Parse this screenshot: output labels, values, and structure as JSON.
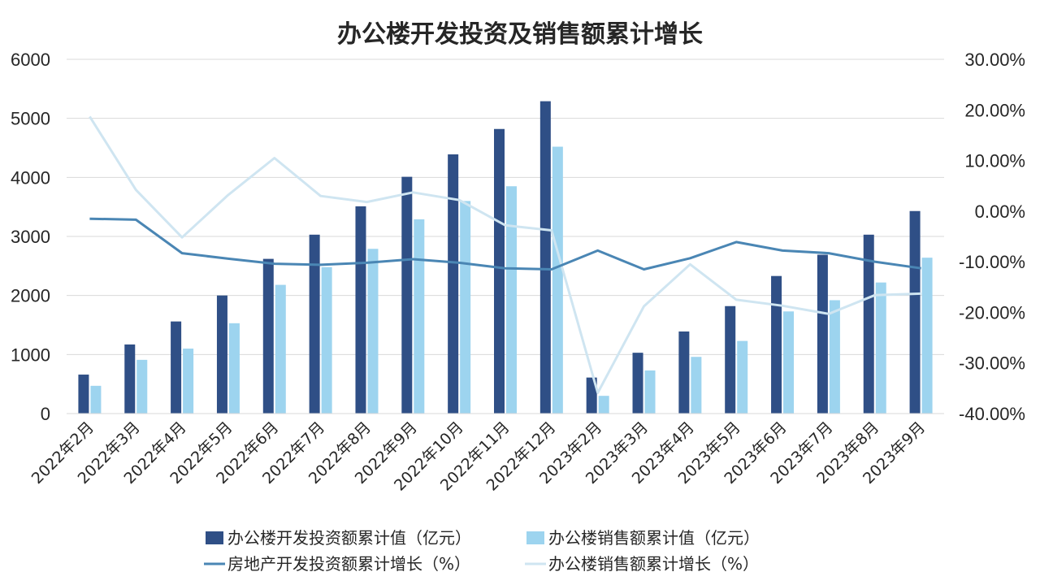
{
  "chart_data": {
    "type": "bar",
    "title": "办公楼开发投资及销售额累计增长",
    "categories": [
      "2022年2月",
      "2022年3月",
      "2022年4月",
      "2022年5月",
      "2022年6月",
      "2022年7月",
      "2022年8月",
      "2022年9月",
      "2022年10月",
      "2022年11月",
      "2022年12月",
      "2023年2月",
      "2023年3月",
      "2023年4月",
      "2023年5月",
      "2023年6月",
      "2023年7月",
      "2023年8月",
      "2023年9月"
    ],
    "y_left": {
      "min": 0,
      "max": 6000,
      "step": 1000,
      "ticks": [
        "0",
        "1000",
        "2000",
        "3000",
        "4000",
        "5000",
        "6000"
      ]
    },
    "y_right": {
      "min": -40,
      "max": 30,
      "step": 10,
      "ticks": [
        "-40.00%",
        "-30.00%",
        "-20.00%",
        "-10.00%",
        "0.00%",
        "10.00%",
        "20.00%",
        "30.00%"
      ]
    },
    "grid": true,
    "legend_position": "bottom",
    "series": [
      {
        "name": "办公楼开发投资额累计值（亿元）",
        "type": "bar",
        "axis": "left",
        "color": "#2f4f86",
        "values": [
          660,
          1170,
          1560,
          2000,
          2620,
          3030,
          3510,
          4010,
          4390,
          4820,
          5290,
          610,
          1030,
          1390,
          1820,
          2330,
          2690,
          3030,
          3430
        ]
      },
      {
        "name": "办公楼销售额累计值（亿元）",
        "type": "bar",
        "axis": "left",
        "color": "#9dd4ef",
        "values": [
          470,
          910,
          1100,
          1530,
          2180,
          2480,
          2790,
          3290,
          3600,
          3850,
          4520,
          300,
          730,
          960,
          1230,
          1730,
          1920,
          2220,
          2640
        ]
      },
      {
        "name": "房地产开发投资额累计增长（%）",
        "type": "line",
        "axis": "right",
        "color": "#4a86b4",
        "values": [
          -1.5,
          -1.7,
          -8.3,
          -9.4,
          -10.4,
          -10.6,
          -10.2,
          -9.5,
          -10.2,
          -11.3,
          -11.5,
          -7.8,
          -11.5,
          -9.3,
          -6.1,
          -7.8,
          -8.3,
          -10.0,
          -11.3
        ]
      },
      {
        "name": "办公楼销售额累计增长（%）",
        "type": "line",
        "axis": "right",
        "color": "#cfe5f1",
        "values": [
          18.7,
          4.2,
          -5.2,
          3.2,
          10.5,
          3.0,
          1.8,
          3.7,
          2.2,
          -2.8,
          -3.8,
          -35.9,
          -18.8,
          -10.5,
          -17.5,
          -18.7,
          -20.3,
          -16.6,
          -16.3
        ]
      }
    ]
  }
}
